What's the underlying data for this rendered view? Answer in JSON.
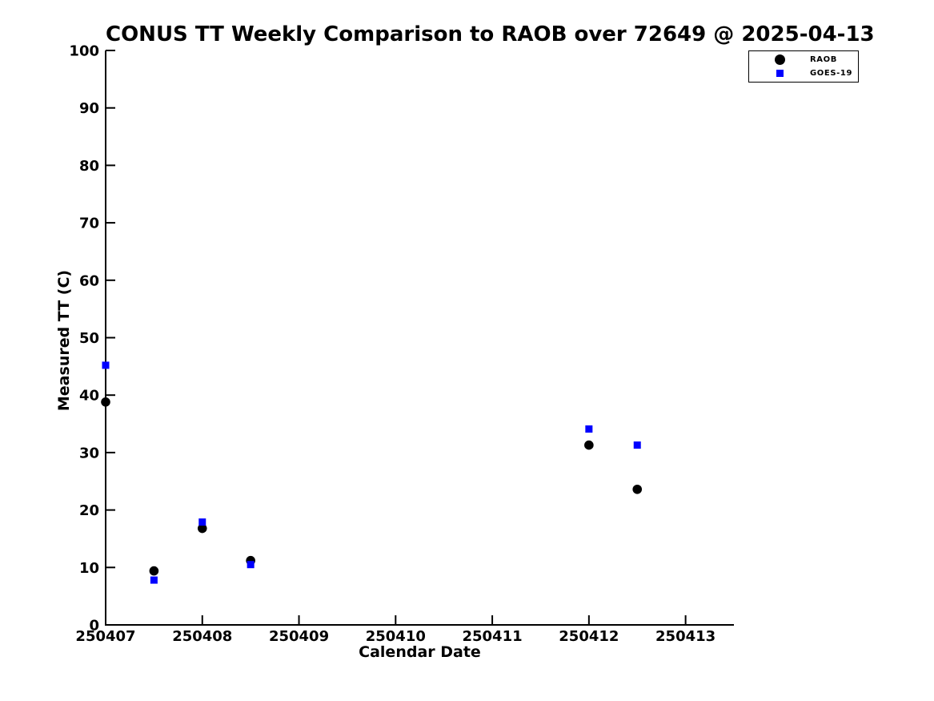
{
  "chart_data": {
    "type": "scatter",
    "title": "CONUS TT Weekly Comparison to RAOB over 72649 @ 2025-04-13",
    "xlabel": "Calendar Date",
    "ylabel": "Measured TT (C)",
    "xlim": [
      250407,
      250413.5
    ],
    "ylim": [
      0,
      100
    ],
    "grid": false,
    "legend_position": "upper right, outside plot box",
    "x_ticks": {
      "values": [
        250407,
        250408,
        250409,
        250410,
        250411,
        250412,
        250413
      ],
      "labels": [
        "250407",
        "250408",
        "250409",
        "250410",
        "250411",
        "250412",
        "250413"
      ]
    },
    "y_ticks": {
      "values": [
        0,
        10,
        20,
        30,
        40,
        50,
        60,
        70,
        80,
        90,
        100
      ],
      "labels": [
        "0",
        "10",
        "20",
        "30",
        "40",
        "50",
        "60",
        "70",
        "80",
        "90",
        "100"
      ]
    },
    "series": [
      {
        "name": "RAOB",
        "marker": "circle",
        "color": "#000000",
        "points": [
          [
            250407.0,
            38.8
          ],
          [
            250407.5,
            9.4
          ],
          [
            250408.0,
            16.8
          ],
          [
            250408.5,
            11.2
          ],
          [
            250412.0,
            31.3
          ],
          [
            250412.5,
            23.6
          ]
        ]
      },
      {
        "name": "GOES-19",
        "marker": "square",
        "color": "#0000ff",
        "points": [
          [
            250407.0,
            45.2
          ],
          [
            250407.5,
            7.8
          ],
          [
            250408.0,
            17.9
          ],
          [
            250408.5,
            10.5
          ],
          [
            250412.0,
            34.1
          ],
          [
            250412.5,
            31.3
          ]
        ]
      }
    ]
  }
}
